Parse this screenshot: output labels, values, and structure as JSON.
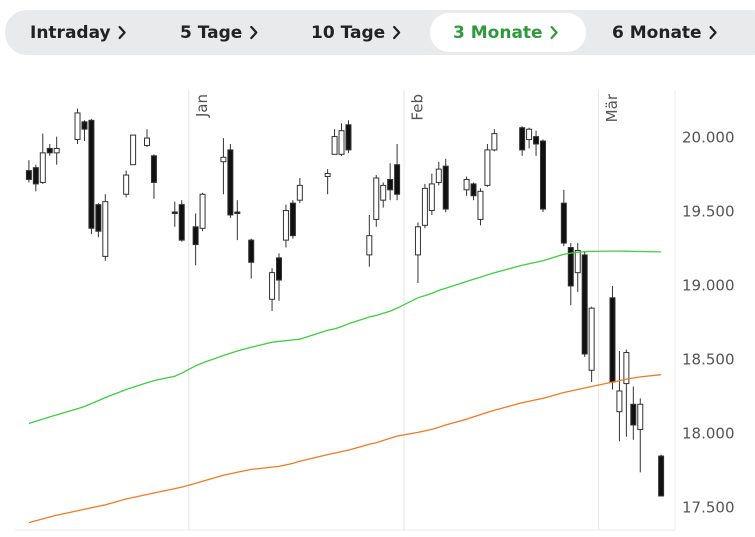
{
  "tabs": [
    {
      "label": "Intraday"
    },
    {
      "label": "5 Tage"
    },
    {
      "label": "10 Tage"
    },
    {
      "label": "3 Monate"
    },
    {
      "label": "6 Monate"
    }
  ],
  "selected_tab": 3,
  "chart_data": {
    "type": "candlestick",
    "x": [
      -23,
      -22,
      -21,
      -20,
      -19,
      -16,
      -15,
      -14,
      -13,
      -12,
      -9,
      -8,
      -6,
      -5,
      -2,
      -1,
      1,
      2,
      5,
      6,
      7,
      9,
      12,
      13,
      14,
      15,
      16,
      20,
      21,
      22,
      23,
      26,
      27,
      28,
      29,
      30,
      33,
      34,
      35,
      36,
      37,
      40,
      41,
      42,
      43,
      44,
      48,
      49,
      50,
      51,
      54,
      55,
      56,
      57,
      58,
      61,
      62,
      63,
      64,
      65,
      68
    ],
    "open": [
      19780,
      19800,
      19700,
      19930,
      19900,
      19990,
      20110,
      20120,
      19550,
      19200,
      19620,
      19820,
      19950,
      19880,
      19500,
      19550,
      19400,
      19390,
      19840,
      19920,
      19500,
      19310,
      18910,
      19190,
      19310,
      19560,
      19580,
      19740,
      19890,
      19890,
      20090,
      19210,
      19450,
      19580,
      19720,
      19820,
      19210,
      19410,
      19510,
      19700,
      19810,
      19650,
      19690,
      19450,
      19680,
      19920,
      20070,
      19990,
      20010,
      19980,
      19560,
      19260,
      19090,
      19210,
      18430,
      18920,
      18150,
      18340,
      18200,
      18030,
      17850
    ],
    "high": [
      19850,
      19820,
      20030,
      19960,
      20010,
      20200,
      20120,
      20130,
      19560,
      19620,
      19780,
      20020,
      20060,
      19890,
      19570,
      19580,
      19490,
      19630,
      20000,
      19960,
      19580,
      19320,
      19120,
      19220,
      19550,
      19580,
      19730,
      19790,
      20060,
      20100,
      20120,
      19480,
      19750,
      19700,
      19830,
      19960,
      19430,
      19690,
      19760,
      19840,
      19860,
      19740,
      19700,
      19660,
      19960,
      20060,
      20080,
      20070,
      20050,
      19990,
      19650,
      19290,
      19290,
      19230,
      18860,
      19000,
      18560,
      18570,
      18320,
      18240,
      17860
    ],
    "low": [
      19700,
      19640,
      19690,
      19880,
      19820,
      19960,
      19980,
      19350,
      19330,
      19170,
      19600,
      19820,
      19940,
      19590,
      19400,
      19300,
      19140,
      19370,
      19620,
      19460,
      19310,
      19050,
      18830,
      18900,
      19260,
      19320,
      19560,
      19620,
      19890,
      19880,
      19900,
      19130,
      19400,
      19530,
      19580,
      19580,
      19020,
      19390,
      19480,
      19680,
      19500,
      19610,
      19580,
      19410,
      19670,
      19910,
      19880,
      19930,
      19880,
      19500,
      19270,
      18870,
      18960,
      18520,
      18350,
      18300,
      17950,
      17980,
      17960,
      17740,
      17580
    ],
    "close": [
      19720,
      19690,
      19900,
      19900,
      19930,
      20170,
      20060,
      19390,
      19370,
      19570,
      19750,
      20020,
      20000,
      19700,
      19490,
      19310,
      19280,
      19620,
      19870,
      19480,
      19490,
      19160,
      19090,
      19040,
      19510,
      19340,
      19680,
      19760,
      20010,
      20050,
      19920,
      19340,
      19730,
      19680,
      19650,
      19620,
      19400,
      19660,
      19690,
      19790,
      19520,
      19720,
      19610,
      19640,
      19920,
      20030,
      19920,
      20060,
      19960,
      19520,
      19290,
      19000,
      19240,
      18540,
      18850,
      18350,
      18290,
      18550,
      18060,
      18200,
      17580
    ],
    "up_color": "#ffffff",
    "down_color": "#111111",
    "lines": [
      {
        "color": "#3ecf3e",
        "values": [
          18070,
          18085,
          18100,
          18115,
          18128,
          18170,
          18185,
          18205,
          18225,
          18245,
          18300,
          18315,
          18345,
          18360,
          18390,
          18410,
          18460,
          18480,
          18530,
          18545,
          18560,
          18585,
          18620,
          18625,
          18630,
          18635,
          18640,
          18700,
          18710,
          18725,
          18745,
          18790,
          18800,
          18815,
          18830,
          18850,
          18920,
          18935,
          18950,
          18970,
          18985,
          19030,
          19045,
          19060,
          19075,
          19090,
          19140,
          19150,
          19160,
          19170,
          19215,
          19222,
          19228,
          19232,
          19234,
          19236,
          19236,
          19235,
          19234,
          19233,
          19230
        ]
      },
      {
        "color": "#f47a20",
        "values": [
          17400,
          17412,
          17425,
          17438,
          17450,
          17480,
          17490,
          17500,
          17510,
          17520,
          17560,
          17570,
          17590,
          17600,
          17630,
          17640,
          17665,
          17680,
          17720,
          17730,
          17740,
          17760,
          17775,
          17780,
          17790,
          17800,
          17815,
          17860,
          17870,
          17880,
          17890,
          17930,
          17940,
          17955,
          17970,
          17985,
          18010,
          18020,
          18030,
          18045,
          18060,
          18100,
          18115,
          18130,
          18145,
          18160,
          18210,
          18220,
          18230,
          18240,
          18280,
          18290,
          18300,
          18310,
          18320,
          18350,
          18360,
          18370,
          18378,
          18385,
          18400
        ]
      }
    ],
    "xlim": [
      -25,
      70
    ],
    "xticks": [
      {
        "value": 0,
        "label": "Jan"
      },
      {
        "value": 31,
        "label": "Feb"
      },
      {
        "value": 59,
        "label": "Mär"
      }
    ],
    "ylim": [
      17350,
      20325
    ],
    "yticks": [
      {
        "value": 17500,
        "label": "17.500"
      },
      {
        "value": 18000,
        "label": "18.000"
      },
      {
        "value": 18500,
        "label": "18.500"
      },
      {
        "value": 19000,
        "label": "19.000"
      },
      {
        "value": 19500,
        "label": "19.500"
      },
      {
        "value": 20000,
        "label": "20.000"
      }
    ],
    "xgrid": true
  }
}
